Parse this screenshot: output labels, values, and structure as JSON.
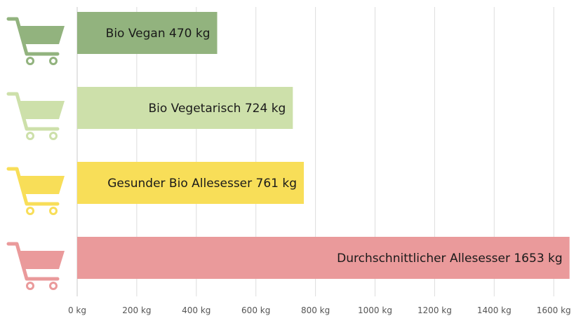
{
  "chart_data": {
    "type": "bar",
    "orientation": "horizontal",
    "categories": [
      "Bio Vegan",
      "Bio Vegetarisch",
      "Gesunder Bio Allesesser",
      "Durchschnittlicher Allesesser"
    ],
    "values": [
      470,
      724,
      761,
      1653
    ],
    "data_labels": [
      "Bio Vegan 470 kg",
      "Bio Vegetarisch 724 kg",
      "Gesunder Bio Allesesser 761 kg",
      "Durchschnittlicher Allesesser 1653 kg"
    ],
    "colors": [
      "#92b37e",
      "#cde0aa",
      "#f8de58",
      "#ea9a9b"
    ],
    "icon": "shopping-cart-icon",
    "xlim": [
      0,
      1650
    ],
    "xticks": [
      0,
      200,
      400,
      600,
      800,
      1000,
      1200,
      1400,
      1600
    ],
    "xtick_labels": [
      "0 kg",
      "200 kg",
      "400 kg",
      "600 kg",
      "800 kg",
      "1000 kg",
      "1200 kg",
      "1400 kg",
      "1600 kg"
    ],
    "grid": true,
    "title": "",
    "xlabel": "",
    "ylabel": ""
  }
}
